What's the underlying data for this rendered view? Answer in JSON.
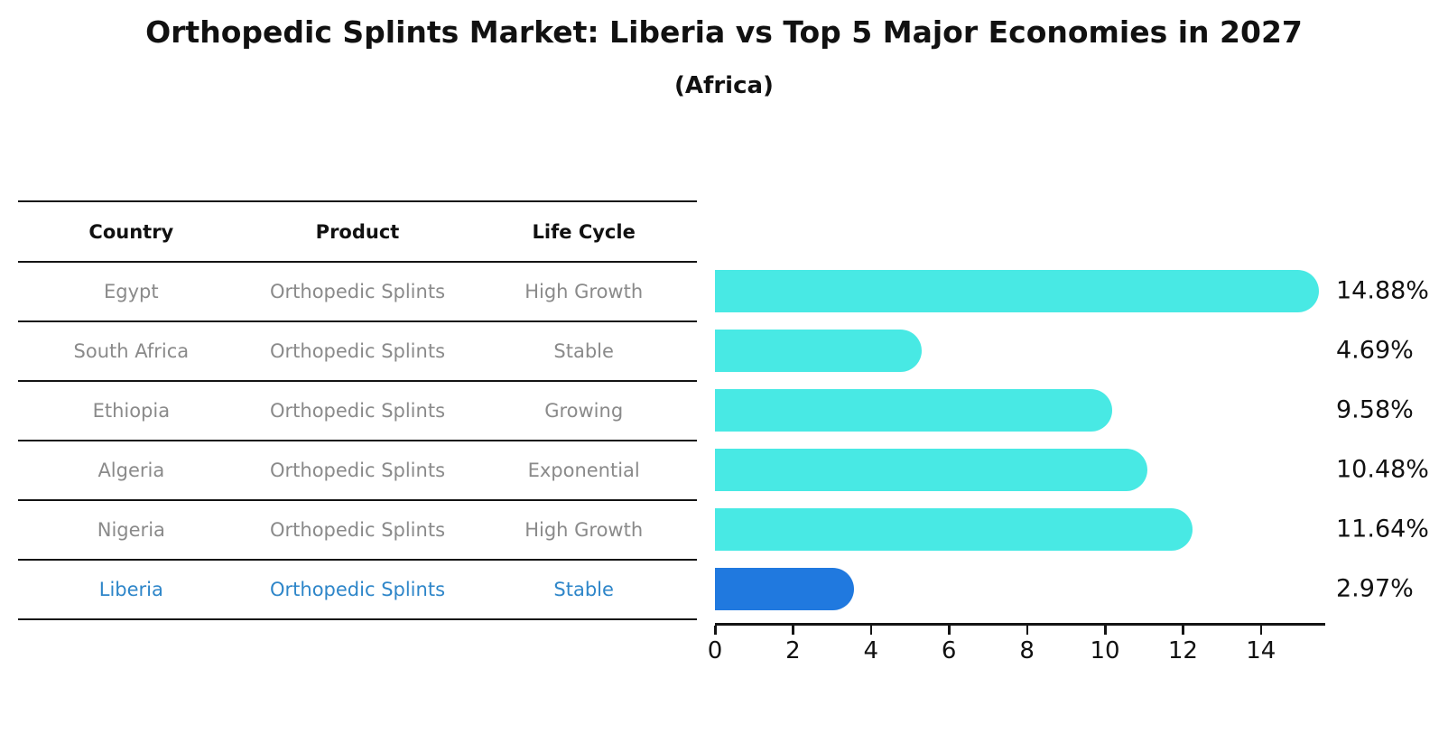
{
  "title": "Orthopedic Splints Market: Liberia vs Top 5 Major Economies in 2027",
  "subtitle": "(Africa)",
  "table": {
    "headers": {
      "country": "Country",
      "product": "Product",
      "life_cycle": "Life Cycle"
    },
    "rows": [
      {
        "country": "Egypt",
        "product": "Orthopedic Splints",
        "life_cycle": "High Growth",
        "highlight": false
      },
      {
        "country": "South Africa",
        "product": "Orthopedic Splints",
        "life_cycle": "Stable",
        "highlight": false
      },
      {
        "country": "Ethiopia",
        "product": "Orthopedic Splints",
        "life_cycle": "Growing",
        "highlight": false
      },
      {
        "country": "Algeria",
        "product": "Orthopedic Splints",
        "life_cycle": "Exponential",
        "highlight": false
      },
      {
        "country": "Nigeria",
        "product": "Orthopedic Splints",
        "life_cycle": "High Growth",
        "highlight": false
      },
      {
        "country": "Liberia",
        "product": "Orthopedic Splints",
        "life_cycle": "Stable",
        "highlight": true
      }
    ]
  },
  "chart_data": {
    "type": "bar",
    "orientation": "horizontal",
    "title": "Orthopedic Splints Market: Liberia vs Top 5 Major Economies in 2027",
    "subtitle": "(Africa)",
    "categories": [
      "Egypt",
      "South Africa",
      "Ethiopia",
      "Algeria",
      "Nigeria",
      "Liberia"
    ],
    "values": [
      14.88,
      4.69,
      9.58,
      10.48,
      11.64,
      2.97
    ],
    "value_labels": [
      "14.88%",
      "4.69%",
      "9.58%",
      "10.48%",
      "11.64%",
      "2.97%"
    ],
    "xlabel": "",
    "ylabel": "",
    "xlim": [
      0,
      15.6
    ],
    "x_ticks": [
      0,
      2,
      4,
      6,
      8,
      10,
      12,
      14
    ],
    "grid": false,
    "legend": "none",
    "bar_color": "#48e9e4",
    "highlight_color": "#2079df",
    "highlight_text_color": "#2e86c9",
    "highlight_index": 5
  }
}
